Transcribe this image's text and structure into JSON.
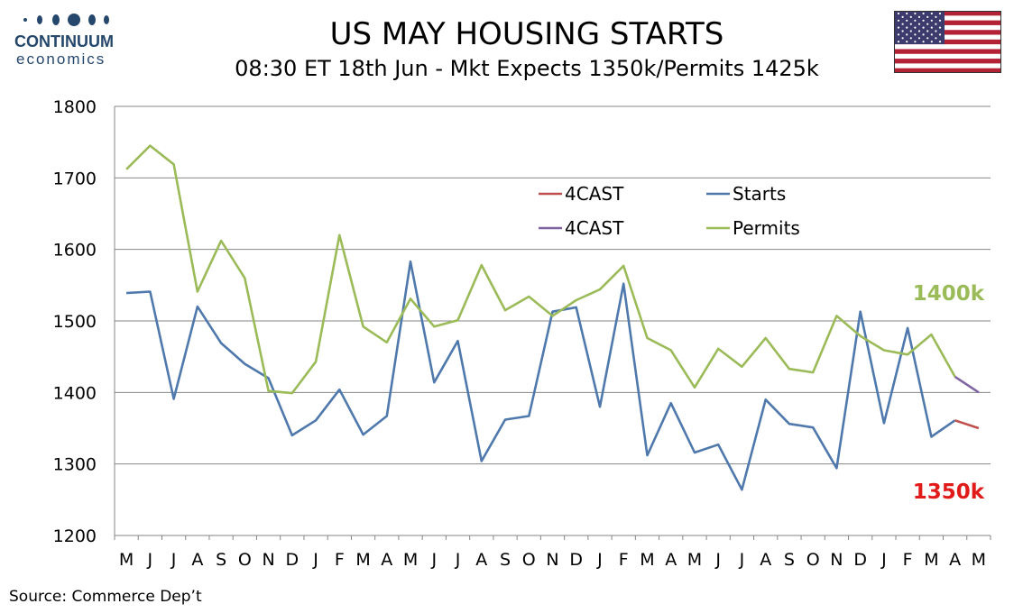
{
  "logo": {
    "word": "CONTINUUM",
    "sub": "economics"
  },
  "header": {
    "title": "US MAY HOUSING STARTS",
    "subtitle": "08:30 ET 18th Jun - Mkt Expects 1350k/Permits 1425k"
  },
  "source": "Source: Commerce Dep’t",
  "flag": {
    "name": "us-flag-icon"
  },
  "colors": {
    "starts": "#4f79ad",
    "permits": "#9bbb59",
    "forecast_starts": "#c0504d",
    "forecast_permits": "#8064a2",
    "label_permits": "#9bbb59",
    "label_starts": "#e11a1a"
  },
  "chart_data": {
    "type": "line",
    "categories": [
      "M",
      "J",
      "J",
      "A",
      "S",
      "O",
      "N",
      "D",
      "J",
      "F",
      "M",
      "A",
      "M",
      "J",
      "J",
      "A",
      "S",
      "O",
      "N",
      "D",
      "J",
      "F",
      "M",
      "A",
      "M",
      "J",
      "J",
      "A",
      "S",
      "O",
      "N",
      "D",
      "J",
      "F",
      "M",
      "A",
      "M"
    ],
    "ylim": [
      1200,
      1800
    ],
    "yticks": [
      1200,
      1300,
      1400,
      1500,
      1600,
      1700,
      1800
    ],
    "grid": true,
    "legend_position": "top-center",
    "series": [
      {
        "name": "Starts",
        "color_key": "starts",
        "values": [
          1539,
          1541,
          1391,
          1520,
          1469,
          1440,
          1420,
          1340,
          1361,
          1404,
          1341,
          1367,
          1583,
          1414,
          1472,
          1304,
          1362,
          1367,
          1513,
          1519,
          1380,
          1552,
          1312,
          1385,
          1316,
          1327,
          1264,
          1390,
          1356,
          1351,
          1294,
          1513,
          1357,
          1490,
          1338,
          1361,
          null
        ]
      },
      {
        "name": "Permits",
        "color_key": "permits",
        "values": [
          1712,
          1745,
          1719,
          1541,
          1612,
          1560,
          1402,
          1399,
          1443,
          1620,
          1492,
          1470,
          1531,
          1492,
          1501,
          1578,
          1515,
          1534,
          1507,
          1529,
          1544,
          1577,
          1476,
          1459,
          1407,
          1461,
          1436,
          1476,
          1433,
          1428,
          1507,
          1479,
          1459,
          1453,
          1481,
          1422,
          null
        ]
      },
      {
        "name": "4CAST",
        "color_key": "forecast_starts",
        "values": [
          null,
          null,
          null,
          null,
          null,
          null,
          null,
          null,
          null,
          null,
          null,
          null,
          null,
          null,
          null,
          null,
          null,
          null,
          null,
          null,
          null,
          null,
          null,
          null,
          null,
          null,
          null,
          null,
          null,
          null,
          null,
          null,
          null,
          null,
          null,
          1361,
          1350
        ]
      },
      {
        "name": "4CAST",
        "color_key": "forecast_permits",
        "values": [
          null,
          null,
          null,
          null,
          null,
          null,
          null,
          null,
          null,
          null,
          null,
          null,
          null,
          null,
          null,
          null,
          null,
          null,
          null,
          null,
          null,
          null,
          null,
          null,
          null,
          null,
          null,
          null,
          null,
          null,
          null,
          null,
          null,
          null,
          null,
          1422,
          1400
        ]
      }
    ],
    "legend": [
      "4CAST",
      "Starts",
      "4CAST",
      "Permits"
    ],
    "annotations": [
      {
        "text": "1400k",
        "value": 1400,
        "color_key": "label_permits"
      },
      {
        "text": "1350k",
        "value": 1350,
        "color_key": "label_starts"
      }
    ]
  }
}
